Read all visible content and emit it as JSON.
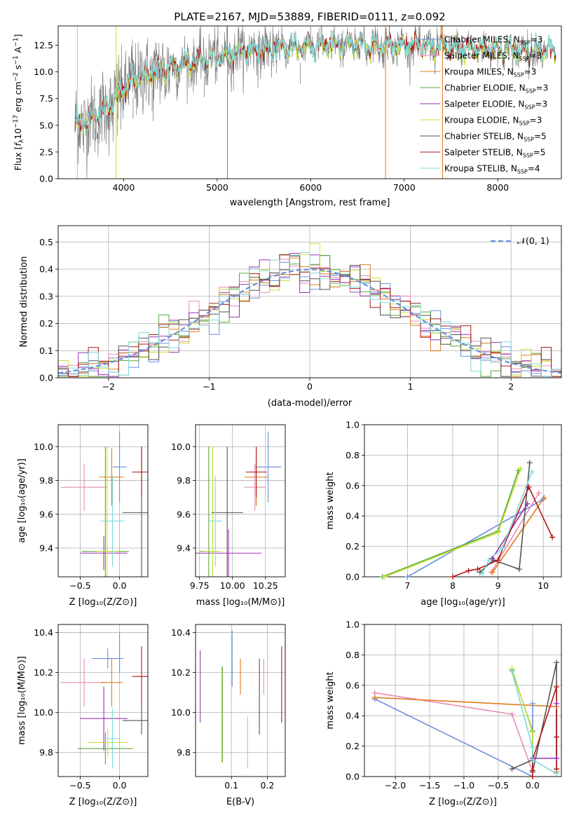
{
  "figure_title": "PLATE=2167, MJD=53889, FIBERID=0111, z=0.092",
  "colors": {
    "chabrier_miles": "#6a8fdc",
    "salpeter_miles": "#e88bb8",
    "kroupa_miles": "#e07b1f",
    "chabrier_elodie": "#5aa83a",
    "salpeter_elodie": "#9b30b8",
    "kroupa_elodie": "#c8e03a",
    "chabrier_stelib": "#555555",
    "salpeter_stelib": "#b01818",
    "kroupa_stelib": "#7fdada",
    "data": "#808080"
  },
  "chart_data": [
    {
      "id": "spectrum",
      "type": "line",
      "xlabel": "wavelength [Angstrom, rest frame]",
      "ylabel": "Flux [f_λ 10^-17 erg cm^-2 s^-1 A^-1]",
      "xlim": [
        3300,
        8680
      ],
      "ylim": [
        0,
        14.3
      ],
      "xticks": [
        4000,
        5000,
        6000,
        7000,
        8000
      ],
      "yticks": [
        0.0,
        2.5,
        5.0,
        7.5,
        10.0,
        12.5
      ],
      "grid": false,
      "legend_position": "right",
      "legend": [
        {
          "label": "Chabrier MILES, N",
          "sub": "SSP",
          "eq": "=3",
          "color_key": "chabrier_miles"
        },
        {
          "label": "Salpeter MILES, N",
          "sub": "SSP",
          "eq": "=3",
          "color_key": "salpeter_miles"
        },
        {
          "label": "Kroupa MILES, N",
          "sub": "SSP",
          "eq": "=3",
          "color_key": "kroupa_miles"
        },
        {
          "label": "Chabrier ELODIE, N",
          "sub": "SSP",
          "eq": "=3",
          "color_key": "chabrier_elodie"
        },
        {
          "label": "Salpeter ELODIE, N",
          "sub": "SSP",
          "eq": "=3",
          "color_key": "salpeter_elodie"
        },
        {
          "label": "Kroupa ELODIE, N",
          "sub": "SSP",
          "eq": "=3",
          "color_key": "kroupa_elodie"
        },
        {
          "label": "Chabrier STELIB, N",
          "sub": "SSP",
          "eq": "=5",
          "color_key": "chabrier_stelib"
        },
        {
          "label": "Salpeter STELIB, N",
          "sub": "SSP",
          "eq": "=5",
          "color_key": "salpeter_stelib"
        },
        {
          "label": "Kroupa STELIB, N",
          "sub": "SSP",
          "eq": "=4",
          "color_key": "kroupa_stelib"
        }
      ],
      "continuum": {
        "x": [
          3500,
          3700,
          3900,
          4000,
          4200,
          4500,
          4800,
          5000,
          5200,
          5500,
          5800,
          6000,
          6300,
          6600,
          6900,
          7200,
          7500,
          7800,
          8000,
          8300,
          8600
        ],
        "y": [
          5.0,
          5.8,
          7.0,
          8.6,
          9.6,
          10.4,
          11.0,
          11.4,
          11.8,
          12.1,
          12.3,
          12.4,
          12.5,
          12.5,
          12.5,
          12.4,
          12.3,
          12.2,
          12.1,
          12.0,
          11.9
        ]
      },
      "vertical_spikes": [
        {
          "x": 3505,
          "color_key": "kroupa_stelib"
        },
        {
          "x": 3920,
          "color_key": "kroupa_elodie"
        },
        {
          "x": 5110,
          "color_key": "data"
        },
        {
          "x": 6800,
          "color_key": "kroupa_miles"
        },
        {
          "x": 7410,
          "color_key": "kroupa_miles"
        }
      ]
    },
    {
      "id": "residual_histogram",
      "type": "line",
      "xlabel": "(data-model)/error",
      "ylabel": "Normed distribution",
      "xlim": [
        -2.5,
        2.5
      ],
      "ylim": [
        0,
        0.56
      ],
      "xticks": [
        -2,
        -1,
        0,
        1,
        2
      ],
      "yticks": [
        0.0,
        0.1,
        0.2,
        0.3,
        0.4,
        0.5
      ],
      "grid": true,
      "legend_position": "top-right",
      "reference_label": "𝒩(0, 1)",
      "reference_color": "#6a8fdc",
      "bin_width": 0.1
    },
    {
      "id": "age_vs_Z",
      "type": "scatter",
      "xlabel": "Z [log₁₀(Z/Z⊙)]",
      "ylabel": "age  [log₁₀(age/yr)]",
      "xlim": [
        -0.78,
        0.36
      ],
      "ylim": [
        9.23,
        10.13
      ],
      "xticks": [
        -0.5,
        0.0
      ],
      "yticks": [
        9.4,
        9.6,
        9.8,
        10.0
      ],
      "grid": true,
      "points": [
        {
          "x": 0.0,
          "y": 9.88,
          "xerr": 0.09,
          "yerr": 0.21,
          "color_key": "chabrier_miles"
        },
        {
          "x": -0.45,
          "y": 9.76,
          "xerr": 0.3,
          "yerr": 0.14,
          "color_key": "salpeter_miles"
        },
        {
          "x": -0.1,
          "y": 9.82,
          "xerr": 0.16,
          "yerr": 0.17,
          "color_key": "kroupa_miles"
        },
        {
          "x": -0.18,
          "y": 9.38,
          "xerr": 0.3,
          "yerr": 0.62,
          "color_key": "chabrier_elodie"
        },
        {
          "x": -0.2,
          "y": 9.37,
          "xerr": 0.3,
          "yerr": 0.1,
          "color_key": "salpeter_elodie"
        },
        {
          "x": -0.16,
          "y": 9.38,
          "xerr": 0.15,
          "yerr": 0.62,
          "color_key": "kroupa_elodie"
        },
        {
          "x": 0.28,
          "y": 9.61,
          "xerr": 0.24,
          "yerr": 0.39,
          "color_key": "chabrier_stelib"
        },
        {
          "x": 0.28,
          "y": 9.85,
          "xerr": 0.12,
          "yerr": 0.15,
          "color_key": "salpeter_stelib"
        },
        {
          "x": -0.09,
          "y": 9.56,
          "xerr": 0.15,
          "yerr": 0.27,
          "color_key": "kroupa_stelib"
        }
      ]
    },
    {
      "id": "age_vs_mass",
      "type": "scatter",
      "xlabel": "mass [log₁₀(M/M⊙)]",
      "ylabel": "",
      "xlim": [
        9.72,
        10.4
      ],
      "ylim": [
        9.23,
        10.13
      ],
      "xticks": [
        9.75,
        10.0,
        10.25
      ],
      "yticks": [
        9.4,
        9.6,
        9.8,
        10.0
      ],
      "grid": true,
      "points": [
        {
          "x": 10.27,
          "y": 9.88,
          "xerr": 0.1,
          "yerr": 0.21,
          "color_key": "chabrier_miles"
        },
        {
          "x": 10.17,
          "y": 9.76,
          "xerr": 0.08,
          "yerr": 0.14,
          "color_key": "salpeter_miles"
        },
        {
          "x": 10.18,
          "y": 9.82,
          "xerr": 0.09,
          "yerr": 0.17,
          "color_key": "kroupa_miles"
        },
        {
          "x": 9.82,
          "y": 9.38,
          "xerr": 0.07,
          "yerr": 0.62,
          "color_key": "chabrier_elodie"
        },
        {
          "x": 9.97,
          "y": 9.37,
          "xerr": 0.25,
          "yerr": 0.14,
          "color_key": "salpeter_elodie"
        },
        {
          "x": 9.85,
          "y": 9.38,
          "xerr": 0.07,
          "yerr": 0.62,
          "color_key": "kroupa_elodie"
        },
        {
          "x": 9.96,
          "y": 9.61,
          "xerr": 0.12,
          "yerr": 0.39,
          "color_key": "chabrier_stelib"
        },
        {
          "x": 10.18,
          "y": 9.85,
          "xerr": 0.08,
          "yerr": 0.15,
          "color_key": "salpeter_stelib"
        },
        {
          "x": 9.87,
          "y": 9.56,
          "xerr": 0.05,
          "yerr": 0.27,
          "color_key": "kroupa_stelib"
        }
      ]
    },
    {
      "id": "weight_vs_age",
      "type": "line",
      "xlabel": "age  [log₁₀(age/yr)]",
      "ylabel": "mass weight",
      "xlim": [
        6.05,
        10.4
      ],
      "ylim": [
        0,
        1.0
      ],
      "xticks": [
        7,
        8,
        9,
        10
      ],
      "yticks": [
        0.0,
        0.2,
        0.4,
        0.6,
        0.8,
        1.0
      ],
      "grid": true,
      "series": [
        {
          "color_key": "chabrier_miles",
          "x": [
            7.0,
            10.0
          ],
          "y": [
            0.0,
            0.51
          ]
        },
        {
          "color_key": "salpeter_miles",
          "x": [
            8.85,
            9.9
          ],
          "y": [
            0.03,
            0.55
          ]
        },
        {
          "color_key": "kroupa_miles",
          "x": [
            8.88,
            10.02
          ],
          "y": [
            0.03,
            0.52
          ]
        },
        {
          "color_key": "chabrier_elodie",
          "x": [
            6.45,
            9.0,
            9.45
          ],
          "y": [
            0.0,
            0.3,
            0.7
          ]
        },
        {
          "color_key": "salpeter_elodie",
          "x": [
            8.87,
            9.65
          ],
          "y": [
            0.12,
            0.48
          ]
        },
        {
          "color_key": "kroupa_elodie",
          "x": [
            6.5,
            9.0,
            9.5
          ],
          "y": [
            0.0,
            0.29,
            0.71
          ]
        },
        {
          "color_key": "chabrier_stelib",
          "x": [
            8.6,
            8.9,
            9.47,
            9.7
          ],
          "y": [
            0.03,
            0.11,
            0.05,
            0.75
          ]
        },
        {
          "color_key": "salpeter_stelib",
          "x": [
            8.0,
            8.35,
            8.55,
            9.0,
            9.68,
            10.2
          ],
          "y": [
            0.0,
            0.04,
            0.05,
            0.11,
            0.59,
            0.26
          ]
        },
        {
          "color_key": "kroupa_stelib",
          "x": [
            8.65,
            8.8,
            9.1,
            9.75
          ],
          "y": [
            0.02,
            0.11,
            0.19,
            0.69
          ]
        }
      ]
    },
    {
      "id": "mass_vs_Z",
      "type": "scatter",
      "xlabel": "Z [log₁₀(Z/Z⊙)]",
      "ylabel": "mass [log₁₀(M/M⊙)]",
      "xlim": [
        -0.78,
        0.36
      ],
      "ylim": [
        9.68,
        10.44
      ],
      "xticks": [
        -0.5,
        0.0
      ],
      "yticks": [
        9.8,
        10.0,
        10.2,
        10.4
      ],
      "grid": true,
      "points": [
        {
          "x": -0.15,
          "y": 10.27,
          "xerr": 0.2,
          "yerr": 0.05,
          "color_key": "chabrier_miles"
        },
        {
          "x": -0.45,
          "y": 10.15,
          "xerr": 0.3,
          "yerr": 0.12,
          "color_key": "salpeter_miles"
        },
        {
          "x": -0.1,
          "y": 10.15,
          "xerr": 0.14,
          "yerr": 0.12,
          "color_key": "kroupa_miles"
        },
        {
          "x": -0.18,
          "y": 9.82,
          "xerr": 0.35,
          "yerr": 0.08,
          "color_key": "chabrier_elodie"
        },
        {
          "x": -0.2,
          "y": 9.97,
          "xerr": 0.3,
          "yerr": 0.16,
          "color_key": "salpeter_elodie"
        },
        {
          "x": -0.15,
          "y": 9.85,
          "xerr": 0.25,
          "yerr": 0.07,
          "color_key": "kroupa_elodie"
        },
        {
          "x": 0.28,
          "y": 9.96,
          "xerr": 0.24,
          "yerr": 0.07,
          "color_key": "chabrier_stelib"
        },
        {
          "x": 0.28,
          "y": 10.18,
          "xerr": 0.12,
          "yerr": 0.15,
          "color_key": "salpeter_stelib"
        },
        {
          "x": -0.09,
          "y": 9.87,
          "xerr": 0.1,
          "yerr": 0.15,
          "color_key": "kroupa_stelib"
        },
        {
          "x": 0.0,
          "y": 10.3,
          "xerr": 0.0,
          "yerr": 0.1,
          "color_key": "chabrier_miles"
        }
      ]
    },
    {
      "id": "mass_vs_ebv",
      "type": "scatter",
      "xlabel": "E(B-V)",
      "ylabel": "",
      "xlim": [
        0.0,
        0.25
      ],
      "ylim": [
        9.68,
        10.44
      ],
      "xticks": [
        0.1,
        0.2
      ],
      "yticks": [
        9.8,
        10.0,
        10.2,
        10.4
      ],
      "grid": true,
      "points": [
        {
          "x": 0.102,
          "y": 10.27,
          "xerr": 0.0,
          "yerr": 0.14,
          "color_key": "chabrier_miles"
        },
        {
          "x": 0.19,
          "y": 10.18,
          "xerr": 0.0,
          "yerr": 0.09,
          "color_key": "salpeter_miles"
        },
        {
          "x": 0.125,
          "y": 10.18,
          "xerr": 0.0,
          "yerr": 0.09,
          "color_key": "kroupa_miles"
        },
        {
          "x": 0.075,
          "y": 9.99,
          "xerr": 0.0,
          "yerr": 0.24,
          "color_key": "chabrier_elodie"
        },
        {
          "x": 0.013,
          "y": 10.13,
          "xerr": 0.0,
          "yerr": 0.18,
          "color_key": "salpeter_elodie"
        },
        {
          "x": 0.073,
          "y": 9.99,
          "xerr": 0.0,
          "yerr": 0.24,
          "color_key": "kroupa_elodie"
        },
        {
          "x": 0.178,
          "y": 10.08,
          "xerr": 0.0,
          "yerr": 0.19,
          "color_key": "chabrier_stelib"
        },
        {
          "x": 0.24,
          "y": 10.14,
          "xerr": 0.0,
          "yerr": 0.19,
          "color_key": "salpeter_stelib"
        },
        {
          "x": 0.145,
          "y": 9.85,
          "xerr": 0.0,
          "yerr": 0.13,
          "color_key": "kroupa_stelib"
        }
      ]
    },
    {
      "id": "weight_vs_Z",
      "type": "line",
      "xlabel": "Z [log₁₀(Z/Z⊙)]",
      "ylabel": "mass weight",
      "xlim": [
        -2.45,
        0.42
      ],
      "ylim": [
        0,
        1.0
      ],
      "xticks": [
        -2.0,
        -1.5,
        -1.0,
        -0.5,
        0.0
      ],
      "yticks": [
        0.0,
        0.2,
        0.4,
        0.6,
        0.8,
        1.0
      ],
      "grid": true,
      "series": [
        {
          "color_key": "chabrier_miles",
          "x": [
            -2.3,
            0.0,
            0.0
          ],
          "y": [
            0.51,
            0.0,
            0.48
          ]
        },
        {
          "color_key": "salpeter_miles",
          "x": [
            -2.3,
            -0.3,
            0.0
          ],
          "y": [
            0.55,
            0.41,
            0.03
          ]
        },
        {
          "color_key": "kroupa_miles",
          "x": [
            -2.3,
            0.35,
            0.35
          ],
          "y": [
            0.52,
            0.46,
            0.03
          ]
        },
        {
          "color_key": "chabrier_elodie",
          "x": [
            -0.3,
            0.0,
            0.0
          ],
          "y": [
            0.7,
            0.3,
            0.0
          ]
        },
        {
          "color_key": "salpeter_elodie",
          "x": [
            0.35,
            0.35,
            0.0
          ],
          "y": [
            0.48,
            0.12,
            0.12
          ]
        },
        {
          "color_key": "kroupa_elodie",
          "x": [
            -0.3,
            0.0,
            0.0
          ],
          "y": [
            0.71,
            0.29,
            0.0
          ]
        },
        {
          "color_key": "chabrier_stelib",
          "x": [
            -0.3,
            0.0,
            0.0,
            0.35,
            0.35
          ],
          "y": [
            0.05,
            0.11,
            0.03,
            0.75,
            0.05
          ]
        },
        {
          "color_key": "salpeter_stelib",
          "x": [
            0.0,
            0.0,
            0.0,
            0.35,
            0.35,
            0.35
          ],
          "y": [
            0.0,
            0.04,
            0.11,
            0.59,
            0.26,
            0.05
          ]
        },
        {
          "color_key": "kroupa_stelib",
          "x": [
            -0.3,
            0.0,
            0.0,
            0.35
          ],
          "y": [
            0.69,
            0.19,
            0.11,
            0.02
          ]
        }
      ]
    }
  ]
}
